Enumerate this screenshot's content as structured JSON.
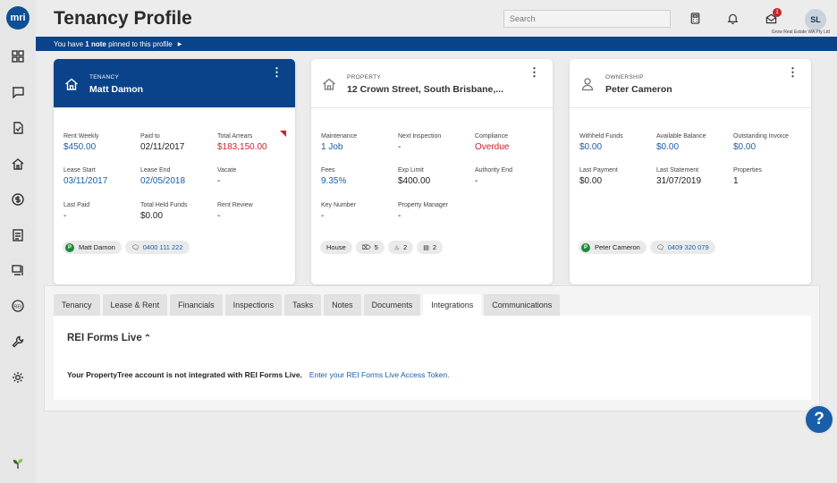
{
  "app": {
    "logo_text": "mri"
  },
  "header": {
    "title": "Tenancy Profile",
    "search_placeholder": "Search",
    "notification_count": "1",
    "user_initials": "SL",
    "agency_name": "Grow Real Estate WA Pty Ltd"
  },
  "pinned": {
    "prefix": "You have ",
    "count_text": "1 note",
    "suffix": " pinned to this profile"
  },
  "cards": {
    "tenancy": {
      "category": "TENANCY",
      "name": "Matt Damon",
      "fields": [
        {
          "label": "Rent Weekly",
          "value": "$450.00"
        },
        {
          "label": "Paid to",
          "value": "02/11/2017"
        },
        {
          "label": "Total Arrears",
          "value": "$183,150.00"
        },
        {
          "label": "Lease Start",
          "value": "03/11/2017"
        },
        {
          "label": "Lease End",
          "value": "02/05/2018"
        },
        {
          "label": "Vacate",
          "value": "-"
        },
        {
          "label": "Last Paid",
          "value": "-"
        },
        {
          "label": "Total Held Funds",
          "value": "$0.00"
        },
        {
          "label": "Rent Review",
          "value": "-"
        }
      ],
      "contact": {
        "initial": "P",
        "name": "Matt Damon",
        "phone": "0400 111 222"
      }
    },
    "property": {
      "category": "PROPERTY",
      "name": "12 Crown Street, South Brisbane,...",
      "fields": [
        {
          "label": "Maintenance",
          "value": "1 Job"
        },
        {
          "label": "Next Inspection",
          "value": "-"
        },
        {
          "label": "Compliance",
          "value": "Overdue"
        },
        {
          "label": "Fees",
          "value": "9.35%"
        },
        {
          "label": "Exp Limit",
          "value": "$400.00"
        },
        {
          "label": "Authority End",
          "value": "-"
        },
        {
          "label": "Key Number",
          "value": "-"
        },
        {
          "label": "Property Manager",
          "value": "-"
        }
      ],
      "features": {
        "type": "House",
        "bedrooms": "5",
        "bathrooms": "2",
        "cars": "2"
      }
    },
    "ownership": {
      "category": "OWNERSHIP",
      "name": "Peter Cameron",
      "fields": [
        {
          "label": "Withheld Funds",
          "value": "$0.00"
        },
        {
          "label": "Available Balance",
          "value": "$0.00"
        },
        {
          "label": "Outstanding Invoice",
          "value": "$0.00"
        },
        {
          "label": "Last Payment",
          "value": "$0.00"
        },
        {
          "label": "Last Statement",
          "value": "31/07/2019"
        },
        {
          "label": "Properties",
          "value": "1"
        }
      ],
      "contact": {
        "initial": "P",
        "name": "Peter Cameron",
        "phone": "0409 320 079"
      }
    }
  },
  "tabs": [
    "Tenancy",
    "Lease & Rent",
    "Financials",
    "Inspections",
    "Tasks",
    "Notes",
    "Documents",
    "Integrations",
    "Communications"
  ],
  "active_tab": "Integrations",
  "integrations": {
    "section_title": "REI Forms Live",
    "message": "Your PropertyTree account is not integrated with REI Forms Live.",
    "link_text": "Enter your REI Forms Live Access Token."
  },
  "help": {
    "label": "?"
  },
  "colors": {
    "brand_blue": "#0a4389",
    "link_blue": "#1a5eaa",
    "alert_red": "#c8242b",
    "contact_green": "#1d8a3a"
  }
}
